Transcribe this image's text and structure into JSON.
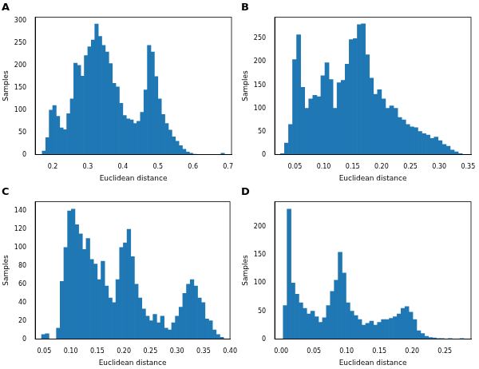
{
  "chart_data": [
    {
      "type": "histogram",
      "title": "A",
      "xlabel": "Euclidean distance",
      "ylabel": "Samples",
      "color": "#1f77b4",
      "grid": false,
      "bins": [
        0.17,
        0.18,
        0.19,
        0.2,
        0.21,
        0.22,
        0.23,
        0.24,
        0.25,
        0.26,
        0.27,
        0.28,
        0.29,
        0.3,
        0.31,
        0.32,
        0.33,
        0.34,
        0.35,
        0.36,
        0.37,
        0.38,
        0.39,
        0.4,
        0.41,
        0.42,
        0.43,
        0.44,
        0.45,
        0.46,
        0.47,
        0.48,
        0.49,
        0.5,
        0.51,
        0.52,
        0.53,
        0.54,
        0.55,
        0.56,
        0.57,
        0.58,
        0.59,
        0.6,
        0.61,
        0.62,
        0.63,
        0.64,
        0.65,
        0.66,
        0.67,
        0.68,
        0.69
      ],
      "values": [
        8,
        38,
        100,
        110,
        86,
        60,
        56,
        92,
        125,
        205,
        200,
        176,
        222,
        242,
        257,
        293,
        265,
        245,
        230,
        204,
        160,
        152,
        115,
        88,
        80,
        78,
        70,
        75,
        95,
        145,
        245,
        230,
        175,
        125,
        90,
        70,
        55,
        40,
        30,
        20,
        12,
        6,
        3,
        1,
        0,
        0,
        0,
        0,
        0,
        0,
        0,
        3
      ],
      "xlim": [
        0.15,
        0.71
      ],
      "xticks": [
        0.2,
        0.3,
        0.4,
        0.5,
        0.6,
        0.7
      ],
      "ylim": [
        0,
        308
      ],
      "yticks": [
        0,
        50,
        100,
        150,
        200,
        250,
        300
      ]
    },
    {
      "type": "histogram",
      "title": "B",
      "xlabel": "Euclidean distance",
      "ylabel": "Samples",
      "color": "#1f77b4",
      "grid": false,
      "bins": [
        0.025,
        0.032,
        0.039,
        0.046,
        0.053,
        0.06,
        0.067,
        0.074,
        0.081,
        0.088,
        0.095,
        0.102,
        0.109,
        0.116,
        0.123,
        0.13,
        0.137,
        0.144,
        0.151,
        0.158,
        0.165,
        0.172,
        0.179,
        0.186,
        0.193,
        0.2,
        0.207,
        0.214,
        0.221,
        0.228,
        0.235,
        0.242,
        0.249,
        0.256,
        0.263,
        0.27,
        0.277,
        0.284,
        0.291,
        0.298,
        0.305,
        0.312,
        0.319,
        0.326,
        0.333,
        0.34
      ],
      "values": [
        2,
        25,
        65,
        205,
        258,
        145,
        100,
        120,
        128,
        125,
        170,
        198,
        162,
        100,
        155,
        160,
        195,
        248,
        250,
        280,
        282,
        215,
        165,
        130,
        140,
        120,
        100,
        105,
        100,
        80,
        75,
        65,
        60,
        58,
        50,
        45,
        42,
        35,
        38,
        30,
        22,
        18,
        10,
        6,
        2
      ],
      "xlim": [
        0.015,
        0.355
      ],
      "xticks": [
        0.05,
        {
          "value": 0.1,
          "label": "0.10"
        },
        0.15,
        {
          "value": 0.2,
          "label": "0.20"
        },
        0.25,
        {
          "value": 0.3,
          "label": "0.30"
        },
        0.35
      ],
      "ylim": [
        0,
        296
      ],
      "yticks": [
        0,
        50,
        100,
        150,
        200,
        250
      ]
    },
    {
      "type": "histogram",
      "title": "C",
      "xlabel": "Euclidean distance",
      "ylabel": "Samples",
      "color": "#1f77b4",
      "grid": false,
      "bins": [
        0.045,
        0.052,
        0.059,
        0.066,
        0.073,
        0.08,
        0.087,
        0.094,
        0.101,
        0.108,
        0.115,
        0.122,
        0.129,
        0.136,
        0.143,
        0.15,
        0.157,
        0.164,
        0.171,
        0.178,
        0.185,
        0.192,
        0.199,
        0.206,
        0.213,
        0.22,
        0.227,
        0.234,
        0.241,
        0.248,
        0.255,
        0.262,
        0.269,
        0.276,
        0.283,
        0.29,
        0.297,
        0.304,
        0.311,
        0.318,
        0.325,
        0.332,
        0.339,
        0.346,
        0.353,
        0.36,
        0.367,
        0.374,
        0.381,
        0.388
      ],
      "values": [
        5,
        6,
        0,
        0,
        12,
        63,
        100,
        140,
        142,
        125,
        115,
        98,
        110,
        87,
        82,
        65,
        85,
        58,
        45,
        40,
        65,
        100,
        105,
        120,
        90,
        60,
        45,
        33,
        25,
        20,
        27,
        18,
        25,
        12,
        10,
        18,
        25,
        35,
        50,
        60,
        65,
        58,
        45,
        40,
        22,
        20,
        10,
        5,
        2
      ],
      "xlim": [
        0.033,
        0.4
      ],
      "xticks": [
        0.05,
        {
          "value": 0.1,
          "label": "0.10"
        },
        0.15,
        {
          "value": 0.2,
          "label": "0.20"
        },
        0.25,
        {
          "value": 0.3,
          "label": "0.30"
        },
        0.35,
        {
          "value": 0.4,
          "label": "0.40"
        }
      ],
      "ylim": [
        0,
        150
      ],
      "yticks": [
        0,
        20,
        40,
        60,
        80,
        100,
        120,
        140
      ]
    },
    {
      "type": "histogram",
      "title": "D",
      "xlabel": "Euclidean distance",
      "ylabel": "Samples",
      "color": "#1f77b4",
      "grid": false,
      "bins": [
        0.003,
        0.009,
        0.015,
        0.021,
        0.027,
        0.033,
        0.039,
        0.045,
        0.051,
        0.057,
        0.063,
        0.069,
        0.075,
        0.081,
        0.087,
        0.093,
        0.099,
        0.105,
        0.111,
        0.117,
        0.123,
        0.129,
        0.135,
        0.141,
        0.147,
        0.153,
        0.159,
        0.165,
        0.171,
        0.177,
        0.183,
        0.189,
        0.195,
        0.201,
        0.207,
        0.213,
        0.219,
        0.225,
        0.231,
        0.237,
        0.243,
        0.249,
        0.255,
        0.261,
        0.267,
        0.273,
        0.279
      ],
      "values": [
        60,
        232,
        100,
        80,
        65,
        55,
        45,
        50,
        40,
        30,
        38,
        60,
        85,
        105,
        155,
        118,
        65,
        50,
        42,
        35,
        25,
        28,
        32,
        25,
        30,
        35,
        35,
        37,
        40,
        45,
        55,
        58,
        48,
        35,
        15,
        10,
        5,
        3,
        2,
        1,
        1,
        0,
        1,
        0,
        0,
        1
      ],
      "xlim": [
        -0.01,
        0.29
      ],
      "xticks": [
        {
          "value": 0,
          "label": "0.00"
        },
        0.05,
        {
          "value": 0.1,
          "label": "0.10"
        },
        0.15,
        {
          "value": 0.2,
          "label": "0.20"
        },
        0.25
      ],
      "ylim": [
        0,
        245
      ],
      "yticks": [
        0,
        50,
        100,
        150,
        200
      ]
    }
  ]
}
